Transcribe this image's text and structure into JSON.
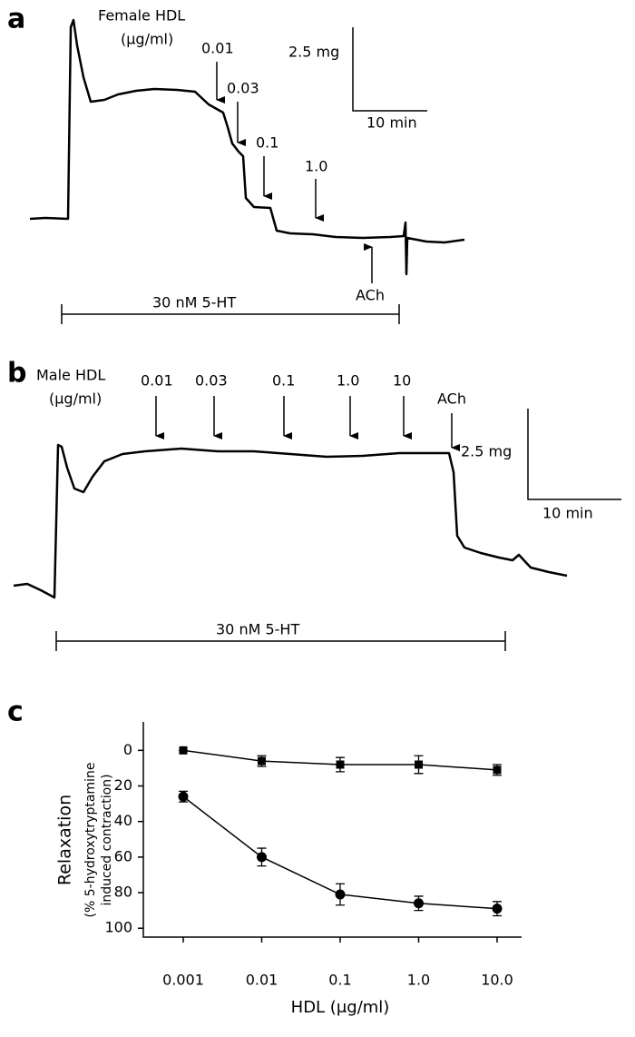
{
  "panel_a": {
    "letter": "a",
    "title": "Female HDL",
    "unit": "(μg/ml)",
    "doses": [
      "0.01",
      "0.03",
      "0.1",
      "1.0"
    ],
    "scale_y": "2.5 mg",
    "scale_x": "10 min",
    "ach": "ACh",
    "treatment": "30 nM 5-HT"
  },
  "panel_b": {
    "letter": "b",
    "title": "Male HDL",
    "unit": "(μg/ml)",
    "doses": [
      "0.01",
      "0.03",
      "0.1",
      "1.0",
      "10"
    ],
    "scale_y": "2.5 mg",
    "scale_x": "10 min",
    "ach": "ACh",
    "treatment": "30 nM 5-HT"
  },
  "chart_data": {
    "type": "line",
    "letter": "c",
    "y_label": "Relaxation",
    "y_sublabel_1": "(% 5-hydroxytryptamine",
    "y_sublabel_2": "induced contraction)",
    "x_label": "HDL (μg/ml)",
    "categories": [
      "0.001",
      "0.01",
      "0.1",
      "1.0",
      "10.0"
    ],
    "series": [
      {
        "marker": "square",
        "color": "#000000",
        "values": [
          0,
          6,
          8,
          8,
          11
        ],
        "errors": [
          0,
          3,
          4,
          5,
          3
        ]
      },
      {
        "marker": "circle",
        "color": "#000000",
        "values": [
          26,
          60,
          81,
          86,
          89
        ],
        "errors": [
          3,
          5,
          6,
          4,
          4
        ]
      }
    ],
    "ylim": [
      -16,
      105
    ],
    "y_inverted": true,
    "yticks": [
      0,
      20,
      40,
      60,
      80,
      100
    ],
    "grid": false
  }
}
